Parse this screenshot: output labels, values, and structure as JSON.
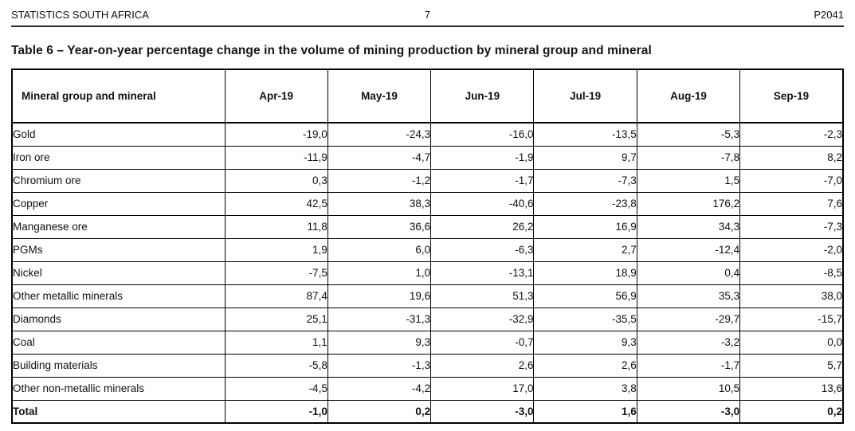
{
  "page_header": {
    "publisher": "STATISTICS SOUTH AFRICA",
    "page_number": "7",
    "report_code": "P2041"
  },
  "title": "Table 6 – Year-on-year percentage change in the volume of mining production by mineral group and mineral",
  "table": {
    "columns": [
      "Mineral group and mineral",
      "Apr-19",
      "May-19",
      "Jun-19",
      "Jul-19",
      "Aug-19",
      "Sep-19"
    ],
    "rows": [
      {
        "label": "Gold",
        "values": [
          "-19,0",
          "-24,3",
          "-16,0",
          "-13,5",
          "-5,3",
          "-2,3"
        ]
      },
      {
        "label": "Iron ore",
        "values": [
          "-11,9",
          "-4,7",
          "-1,9",
          "9,7",
          "-7,8",
          "8,2"
        ]
      },
      {
        "label": "Chromium ore",
        "values": [
          "0,3",
          "-1,2",
          "-1,7",
          "-7,3",
          "1,5",
          "-7,0"
        ]
      },
      {
        "label": "Copper",
        "values": [
          "42,5",
          "38,3",
          "-40,6",
          "-23,8",
          "176,2",
          "7,6"
        ]
      },
      {
        "label": "Manganese ore",
        "values": [
          "11,8",
          "36,6",
          "26,2",
          "16,9",
          "34,3",
          "-7,3"
        ]
      },
      {
        "label": "PGMs",
        "values": [
          "1,9",
          "6,0",
          "-6,3",
          "2,7",
          "-12,4",
          "-2,0"
        ]
      },
      {
        "label": "Nickel",
        "values": [
          "-7,5",
          "1,0",
          "-13,1",
          "18,9",
          "0,4",
          "-8,5"
        ]
      },
      {
        "label": "Other metallic minerals",
        "values": [
          "87,4",
          "19,6",
          "51,3",
          "56,9",
          "35,3",
          "38,0"
        ]
      },
      {
        "label": "Diamonds",
        "values": [
          "25,1",
          "-31,3",
          "-32,9",
          "-35,5",
          "-29,7",
          "-15,7"
        ]
      },
      {
        "label": "Coal",
        "values": [
          "1,1",
          "9,3",
          "-0,7",
          "9,3",
          "-3,2",
          "0,0"
        ]
      },
      {
        "label": "Building materials",
        "values": [
          "-5,8",
          "-1,3",
          "2,6",
          "2,6",
          "-1,7",
          "5,7"
        ]
      },
      {
        "label": "Other non-metallic minerals",
        "values": [
          "-4,5",
          "-4,2",
          "17,0",
          "3,8",
          "10,5",
          "13,6"
        ]
      }
    ],
    "total_row": {
      "label": "Total",
      "values": [
        "-1,0",
        "0,2",
        "-3,0",
        "1,6",
        "-3,0",
        "0,2"
      ]
    }
  }
}
